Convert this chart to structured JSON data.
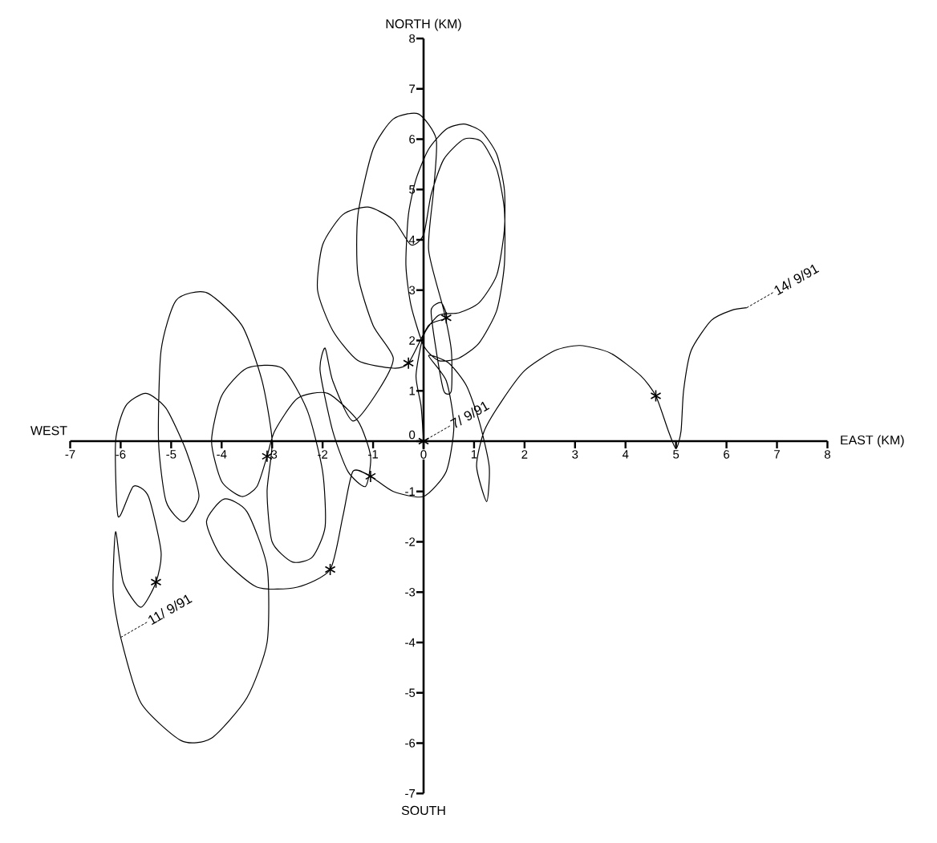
{
  "chart_data": {
    "type": "line",
    "xlabel": "EAST (KM)",
    "ylabel": "NORTH (KM)",
    "xlim": [
      -7,
      8
    ],
    "ylim": [
      -7,
      8
    ],
    "xticks": [
      -7,
      -6,
      -5,
      -4,
      -3,
      -2,
      -1,
      0,
      1,
      2,
      3,
      4,
      5,
      6,
      7,
      8
    ],
    "yticks": [
      -7,
      -6,
      -5,
      -4,
      -3,
      -2,
      -1,
      0,
      1,
      2,
      3,
      4,
      5,
      6,
      7,
      8
    ],
    "series": [
      {
        "color": "#000000",
        "line_style": "solid",
        "x": [
          0,
          -0.05,
          -0.15,
          0.0,
          0.3,
          0.7,
          1.1,
          1.45,
          1.6,
          1.6,
          1.45,
          1.15,
          0.8,
          0.45,
          0.1,
          -0.15,
          -0.3,
          -0.35,
          -0.25,
          0.0,
          0.3,
          0.7,
          1.1,
          1.45,
          1.6,
          1.6,
          1.45,
          1.15,
          0.8,
          0.4,
          0.15,
          0.0,
          -0.25,
          -0.6,
          -1.1,
          -1.6,
          -2.0,
          -2.1,
          -1.8,
          -1.3,
          -0.6,
          -0.3,
          0.1,
          0.45,
          0.35,
          0.15,
          0.25,
          0.4,
          0.55,
          0.55,
          0.4,
          0.1,
          0.2,
          0.25,
          -0.1,
          -0.6,
          -1.0,
          -1.3,
          -1.3,
          -1.0,
          -0.6,
          -0.9,
          -1.4,
          -1.8,
          -1.95,
          -2.05,
          -1.8,
          -1.5,
          -1.15,
          -1.05,
          -1.3,
          -1.9,
          -2.5,
          -2.95,
          -3.1,
          -3.3,
          -3.6,
          -4.0,
          -4.2,
          -4.0,
          -3.5,
          -2.8,
          -2.3,
          -2.0,
          -1.95,
          -2.2,
          -2.6,
          -3.0,
          -3.1,
          -3.0,
          -3.2,
          -3.6,
          -4.3,
          -4.9,
          -5.2,
          -5.25,
          -5.1,
          -4.75,
          -4.45,
          -4.7,
          -5.1,
          -5.5,
          -5.9,
          -6.1,
          -6.05,
          -5.75,
          -5.45,
          -5.2,
          -5.3,
          -5.6,
          -5.95,
          -6.1,
          -6.15,
          -6.0,
          -5.6,
          -4.8,
          -4.2,
          -3.5,
          -3.1,
          -3.1,
          -3.5,
          -3.95,
          -4.3,
          -4.0,
          -3.3,
          -2.5,
          -1.85,
          -1.6,
          -1.4,
          -1.05,
          -0.6,
          0.0,
          0.45,
          0.6,
          0.45,
          0.1,
          0.5,
          0.85,
          1.1,
          1.3,
          1.25,
          1.05,
          1.2,
          1.55,
          2.0,
          2.6,
          3.1,
          3.7,
          4.3,
          4.6,
          4.85,
          5.0,
          5.1,
          5.15,
          5.3,
          5.7,
          6.1,
          6.4
        ],
        "values": [
          0,
          0.7,
          1.3,
          2.1,
          2.5,
          2.55,
          2.75,
          3.3,
          4.2,
          5.0,
          5.7,
          6.15,
          6.3,
          6.2,
          5.8,
          5.2,
          4.5,
          3.5,
          2.7,
          1.9,
          1.6,
          1.65,
          1.95,
          2.6,
          3.5,
          4.6,
          5.4,
          5.95,
          6.0,
          5.6,
          4.9,
          4.1,
          3.9,
          4.4,
          4.65,
          4.5,
          3.9,
          3.0,
          2.2,
          1.6,
          1.45,
          1.55,
          2.3,
          2.45,
          2.75,
          2.6,
          1.8,
          1.0,
          1.0,
          1.8,
          2.6,
          3.8,
          5.0,
          6.0,
          6.5,
          6.4,
          5.8,
          4.5,
          3.3,
          2.3,
          1.65,
          1.0,
          0.4,
          1.2,
          1.85,
          1.4,
          0.2,
          -0.6,
          -0.9,
          -0.3,
          0.4,
          0.95,
          0.85,
          0.2,
          -0.3,
          -0.9,
          -1.1,
          -0.8,
          0.0,
          0.9,
          1.45,
          1.45,
          0.6,
          -0.6,
          -1.7,
          -2.3,
          -2.4,
          -2.0,
          -1.0,
          0.0,
          1.2,
          2.3,
          2.95,
          2.8,
          1.8,
          0.0,
          -1.2,
          -1.6,
          -1.1,
          -0.2,
          0.65,
          0.95,
          0.7,
          0.0,
          -1.5,
          -0.9,
          -1.1,
          -2.2,
          -2.8,
          -3.3,
          -2.8,
          -1.8,
          -3.0,
          -3.9,
          -5.2,
          -5.95,
          -5.9,
          -5.1,
          -4.0,
          -2.5,
          -1.4,
          -1.15,
          -1.6,
          -2.3,
          -2.9,
          -2.9,
          -2.55,
          -1.5,
          -0.6,
          -0.7,
          -1.0,
          -1.1,
          -0.6,
          0.3,
          1.2,
          1.7,
          1.55,
          1.1,
          0.4,
          -0.5,
          -1.2,
          -0.5,
          0.2,
          0.8,
          1.4,
          1.8,
          1.9,
          1.75,
          1.3,
          0.9,
          0.2,
          -0.15,
          0.2,
          1.0,
          1.8,
          2.4,
          2.6,
          2.65
        ]
      },
      {
        "type": "scatter",
        "marker": "cross",
        "color": "#000000",
        "x": [
          0,
          0.45,
          -0.3,
          -1.05,
          -3.1,
          -1.85,
          -5.3,
          4.6
        ],
        "values": [
          0,
          2.45,
          1.55,
          -0.7,
          -0.3,
          -2.55,
          -2.8,
          0.9
        ]
      }
    ],
    "annotations": [
      {
        "text": "7/ 9/91",
        "x": 0,
        "y": 0
      },
      {
        "text": "11/ 9/91",
        "x": -6.0,
        "y": -3.9
      },
      {
        "text": "14/ 9/91",
        "x": 6.4,
        "y": 2.65
      },
      "WEST",
      "SOUTH"
    ]
  }
}
